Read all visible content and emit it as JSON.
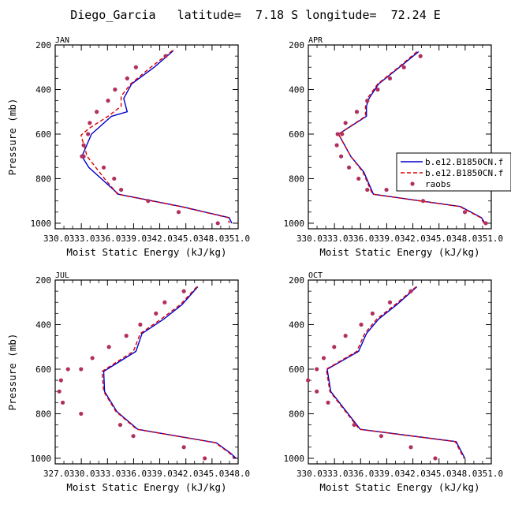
{
  "figure": {
    "title": "Diego_Garcia   latitude=  7.18 S longitude=  72.24 E",
    "legend": {
      "entries": [
        {
          "label": "b.e12.B1850CN.f",
          "color": "#0000cc",
          "style": "solid-line"
        },
        {
          "label": "b.e12.B1850CN.f",
          "color": "#dd0000",
          "style": "dashed-line"
        },
        {
          "label": "raobs",
          "color": "#b03060",
          "style": "dot"
        }
      ]
    }
  },
  "chart_data": [
    {
      "type": "line",
      "panel": "JAN",
      "title": "JAN",
      "xlabel": "Moist Static Energy (kJ/kg)",
      "ylabel": "Pressure (mb)",
      "xlim": [
        330.0333,
        351.0333
      ],
      "ylim": [
        1025,
        200
      ],
      "xticks": [
        "330.0",
        "333.0",
        "336.0",
        "339.0",
        "342.0",
        "345.0",
        "348.0",
        "351.0"
      ],
      "xticklabels_rendered": "330.0333.0336.0339.0342.0345.0348.0351.0",
      "yticks": [
        200,
        400,
        600,
        800,
        1000
      ],
      "grid": false,
      "series": [
        {
          "name": "b.e12.B1850CN.f",
          "color": "#0000cc",
          "dash": "solid",
          "x": [
            343.6,
            341.4,
            338.8,
            337.9,
            338.3,
            336.5,
            334.2,
            333.1,
            333.9,
            337.3,
            344.5,
            350.0,
            350.3
          ],
          "y": [
            225,
            300,
            375,
            440,
            500,
            520,
            600,
            700,
            750,
            870,
            925,
            975,
            1000
          ]
        },
        {
          "name": "b.e12.B1850CN.f",
          "color": "#dd0000",
          "dash": "dashed",
          "x": [
            343.5,
            341.0,
            338.7,
            337.6,
            337.6,
            336.1,
            333.9,
            333.0,
            333.7,
            335.7,
            337.2,
            344.4,
            349.9,
            350.0
          ],
          "y": [
            225,
            300,
            375,
            430,
            475,
            520,
            575,
            605,
            700,
            800,
            870,
            925,
            975,
            1000
          ]
        },
        {
          "name": "raobs",
          "color": "#b03060",
          "marker": "dot",
          "x": [
            342.7,
            339.3,
            338.3,
            336.9,
            336.1,
            334.8,
            334.0,
            333.8,
            333.3,
            333.1,
            333.3,
            335.6,
            336.8,
            337.6,
            340.7,
            344.2,
            348.7
          ],
          "y": [
            250,
            300,
            350,
            400,
            450,
            500,
            550,
            600,
            650,
            700,
            700,
            750,
            800,
            850,
            900,
            950,
            1000
          ]
        }
      ]
    },
    {
      "type": "line",
      "panel": "APR",
      "title": "APR",
      "xlabel": "Moist Static Energy (kJ/kg)",
      "ylabel": "",
      "xlim": [
        330.0333,
        351.0333
      ],
      "ylim": [
        1025,
        200
      ],
      "xticks": [
        "330.0",
        "333.0",
        "336.0",
        "339.0",
        "342.0",
        "345.0",
        "348.0",
        "351.0"
      ],
      "xticklabels_rendered": "330.0333.0336.0339.0342.0345.0348.0351.0",
      "yticks": [
        200,
        400,
        600,
        800,
        1000
      ],
      "grid": false,
      "series": [
        {
          "name": "b.e12.B1850CN.f",
          "color": "#0000cc",
          "dash": "solid",
          "x": [
            342.7,
            340.5,
            338.1,
            337.0,
            336.7,
            336.7,
            333.5,
            334.9,
            336.4,
            337.5,
            347.5,
            349.9,
            350.3
          ],
          "y": [
            230,
            300,
            375,
            440,
            475,
            520,
            600,
            700,
            770,
            870,
            925,
            975,
            1000
          ]
        },
        {
          "name": "b.e12.B1850CN.f",
          "color": "#dd0000",
          "dash": "dashed",
          "x": [
            342.5,
            340.4,
            338.0,
            336.8,
            336.6,
            336.6,
            333.5,
            334.9,
            336.3,
            337.4,
            347.4,
            349.8,
            350.2
          ],
          "y": [
            230,
            300,
            375,
            440,
            475,
            520,
            600,
            700,
            770,
            870,
            925,
            975,
            1000
          ]
        },
        {
          "name": "raobs",
          "color": "#b03060",
          "marker": "dot",
          "x": [
            342.9,
            341.0,
            339.4,
            338.0,
            336.8,
            335.6,
            334.3,
            333.9,
            333.4,
            333.3,
            333.8,
            334.7,
            335.8,
            336.8,
            339.0,
            343.2,
            348.0,
            350.4
          ],
          "y": [
            250,
            300,
            350,
            400,
            450,
            500,
            550,
            600,
            600,
            650,
            700,
            750,
            800,
            850,
            850,
            900,
            950,
            1000
          ]
        }
      ]
    },
    {
      "type": "line",
      "panel": "JUL",
      "title": "JUL",
      "xlabel": "Moist Static Energy (kJ/kg)",
      "ylabel": "Pressure (mb)",
      "xlim": [
        327.0333,
        348.0333
      ],
      "ylim": [
        1025,
        200
      ],
      "xticks": [
        "327.0",
        "330.0",
        "333.0",
        "336.0",
        "339.0",
        "342.0",
        "345.0",
        "348.0"
      ],
      "xticklabels_rendered": "327.0330.0333.0336.0339.0342.0345.0348.0",
      "yticks": [
        200,
        400,
        600,
        800,
        1000
      ],
      "grid": false,
      "series": [
        {
          "name": "b.e12.B1850CN.f",
          "color": "#0000cc",
          "dash": "solid",
          "x": [
            343.4,
            341.6,
            339.5,
            337.0,
            336.3,
            332.6,
            332.7,
            334.1,
            336.5,
            345.5,
            347.1,
            347.8
          ],
          "y": [
            230,
            310,
            375,
            440,
            520,
            610,
            700,
            790,
            870,
            930,
            975,
            1000
          ]
        },
        {
          "name": "b.e12.B1850CN.f",
          "color": "#dd0000",
          "dash": "dashed",
          "x": [
            343.3,
            341.4,
            339.2,
            336.8,
            336.0,
            332.4,
            332.6,
            334.0,
            336.4,
            345.4,
            347.0,
            347.6
          ],
          "y": [
            230,
            310,
            375,
            440,
            520,
            610,
            700,
            790,
            870,
            930,
            975,
            1000
          ]
        },
        {
          "name": "raobs",
          "color": "#b03060",
          "marker": "dot",
          "x": [
            341.8,
            339.6,
            338.6,
            336.8,
            335.2,
            333.2,
            331.3,
            330.0,
            328.5,
            327.7,
            327.5,
            327.9,
            330.0,
            334.5,
            336.0,
            341.8,
            344.2
          ],
          "y": [
            250,
            300,
            350,
            400,
            450,
            500,
            550,
            600,
            600,
            650,
            700,
            750,
            800,
            850,
            900,
            950,
            1000
          ]
        }
      ]
    },
    {
      "type": "line",
      "panel": "OCT",
      "title": "OCT",
      "xlabel": "Moist Static Energy (kJ/kg)",
      "ylabel": "",
      "xlim": [
        330.0333,
        351.0333
      ],
      "ylim": [
        1025,
        200
      ],
      "xticks": [
        "330.0",
        "333.0",
        "336.0",
        "339.0",
        "342.0",
        "345.0",
        "348.0",
        "351.0"
      ],
      "xticklabels_rendered": "330.0333.0336.0339.0342.0345.0348.0351.0",
      "yticks": [
        200,
        400,
        600,
        800,
        1000
      ],
      "grid": false,
      "series": [
        {
          "name": "b.e12.B1850CN.f",
          "color": "#0000cc",
          "dash": "solid",
          "x": [
            342.5,
            340.2,
            338.1,
            336.7,
            335.8,
            332.2,
            332.6,
            334.2,
            336.0,
            347.0,
            348.0
          ],
          "y": [
            230,
            310,
            375,
            440,
            520,
            600,
            700,
            780,
            870,
            925,
            1000
          ]
        },
        {
          "name": "b.e12.B1850CN.f",
          "color": "#dd0000",
          "dash": "dashed",
          "x": [
            342.4,
            340.0,
            337.9,
            336.5,
            335.6,
            332.1,
            332.5,
            334.1,
            335.9,
            346.9,
            347.9
          ],
          "y": [
            230,
            310,
            375,
            440,
            520,
            600,
            700,
            780,
            870,
            925,
            1000
          ]
        },
        {
          "name": "raobs",
          "color": "#b03060",
          "marker": "dot",
          "x": [
            341.8,
            339.4,
            337.4,
            336.1,
            334.3,
            333.0,
            331.8,
            331.0,
            330.0,
            331.0,
            332.3,
            335.3,
            338.4,
            341.8,
            344.6
          ],
          "y": [
            250,
            300,
            350,
            400,
            450,
            500,
            550,
            600,
            650,
            700,
            750,
            850,
            900,
            950,
            1000
          ]
        }
      ]
    }
  ]
}
